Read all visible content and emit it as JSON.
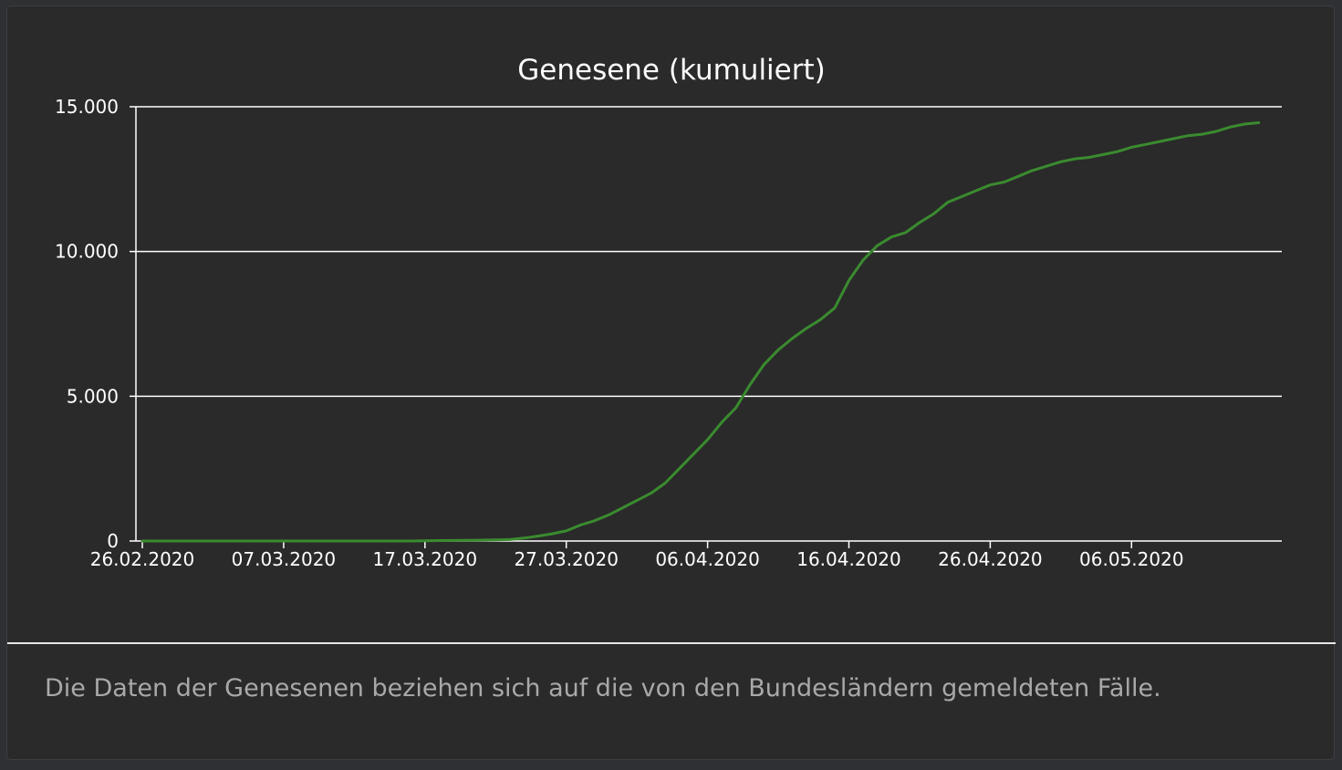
{
  "card": {
    "footnote": "Die Daten der Genesenen beziehen sich auf die von den Bundesländern gemeldeten Fälle."
  },
  "chart_data": {
    "type": "line",
    "title": "Genesene (kumuliert)",
    "xlabel": "",
    "ylabel": "",
    "ylim": [
      0,
      15000
    ],
    "x_start": "26.02.2020",
    "yticks": [
      0,
      5000,
      10000,
      15000
    ],
    "ytick_labels": [
      "0",
      "5.000",
      "10.000",
      "15.000"
    ],
    "xticks": [
      "26.02.2020",
      "07.03.2020",
      "17.03.2020",
      "27.03.2020",
      "06.04.2020",
      "16.04.2020",
      "26.04.2020",
      "06.05.2020"
    ],
    "grid": "horizontal",
    "line_color": "#3a8b2f",
    "series": [
      {
        "x": [
          "26.02.2020",
          "27.02.2020",
          "28.02.2020",
          "29.02.2020",
          "01.03.2020",
          "02.03.2020",
          "03.03.2020",
          "04.03.2020",
          "05.03.2020",
          "06.03.2020",
          "07.03.2020",
          "08.03.2020",
          "09.03.2020",
          "10.03.2020",
          "11.03.2020",
          "12.03.2020",
          "13.03.2020",
          "14.03.2020",
          "15.03.2020",
          "16.03.2020",
          "17.03.2020",
          "18.03.2020",
          "19.03.2020",
          "20.03.2020",
          "21.03.2020",
          "22.03.2020",
          "23.03.2020",
          "24.03.2020",
          "25.03.2020",
          "26.03.2020",
          "27.03.2020",
          "28.03.2020",
          "29.03.2020",
          "30.03.2020",
          "31.03.2020",
          "01.04.2020",
          "02.04.2020",
          "03.04.2020",
          "04.04.2020",
          "05.04.2020",
          "06.04.2020",
          "07.04.2020",
          "08.04.2020",
          "09.04.2020",
          "10.04.2020",
          "11.04.2020",
          "12.04.2020",
          "13.04.2020",
          "14.04.2020",
          "15.04.2020",
          "16.04.2020",
          "17.04.2020",
          "18.04.2020",
          "19.04.2020",
          "20.04.2020",
          "21.04.2020",
          "22.04.2020",
          "23.04.2020",
          "24.04.2020",
          "25.04.2020",
          "26.04.2020",
          "27.04.2020",
          "28.04.2020",
          "29.04.2020",
          "30.04.2020",
          "01.05.2020",
          "02.05.2020",
          "03.05.2020",
          "04.05.2020",
          "05.05.2020",
          "06.05.2020",
          "07.05.2020",
          "08.05.2020",
          "09.05.2020",
          "10.05.2020",
          "11.05.2020",
          "12.05.2020",
          "13.05.2020",
          "14.05.2020",
          "15.05.2020"
        ],
        "values": [
          0,
          0,
          0,
          0,
          0,
          0,
          0,
          0,
          0,
          0,
          0,
          0,
          0,
          0,
          0,
          0,
          0,
          0,
          0,
          0,
          10,
          15,
          20,
          25,
          30,
          40,
          50,
          100,
          170,
          250,
          350,
          550,
          700,
          900,
          1150,
          1400,
          1650,
          2000,
          2500,
          3000,
          3500,
          4100,
          4600,
          5400,
          6100,
          6600,
          7000,
          7350,
          7650,
          8050,
          9000,
          9700,
          10200,
          10500,
          10650,
          11000,
          11300,
          11700,
          11900,
          12100,
          12300,
          12400,
          12600,
          12800,
          12950,
          13100,
          13200,
          13250,
          13350,
          13450,
          13600,
          13700,
          13800,
          13900,
          14000,
          14050,
          14150,
          14300,
          14400,
          14450
        ]
      }
    ]
  }
}
